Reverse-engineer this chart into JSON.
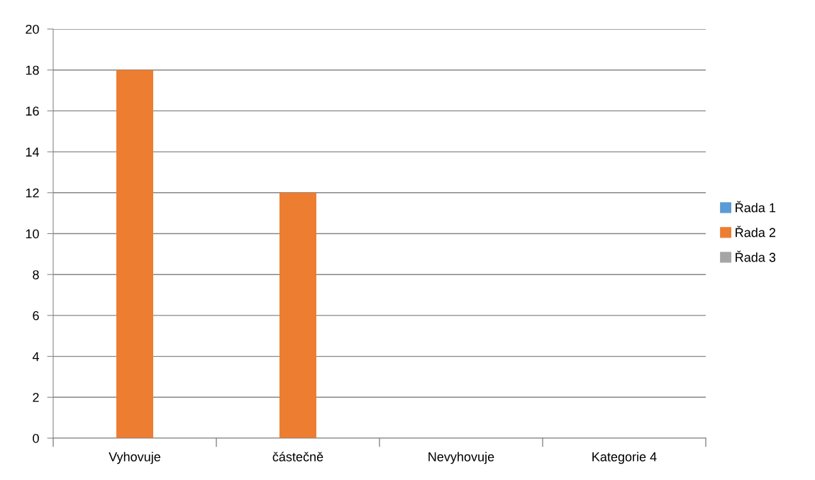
{
  "chart_data": {
    "type": "bar",
    "categories": [
      "Vyhovuje",
      "částečně",
      "Nevyhovuje",
      "Kategorie 4"
    ],
    "series": [
      {
        "name": "Řada 1",
        "color": "#5b9bd5",
        "values": [
          null,
          null,
          null,
          null
        ]
      },
      {
        "name": "Řada 2",
        "color": "#ed7d31",
        "values": [
          18,
          12,
          null,
          null
        ]
      },
      {
        "name": "Řada 3",
        "color": "#a5a5a5",
        "values": [
          null,
          null,
          null,
          null
        ]
      }
    ],
    "ylim": [
      0,
      20
    ],
    "yticks": [
      0,
      2,
      4,
      6,
      8,
      10,
      12,
      14,
      16,
      18,
      20
    ],
    "grid": "y",
    "legend": "right"
  }
}
